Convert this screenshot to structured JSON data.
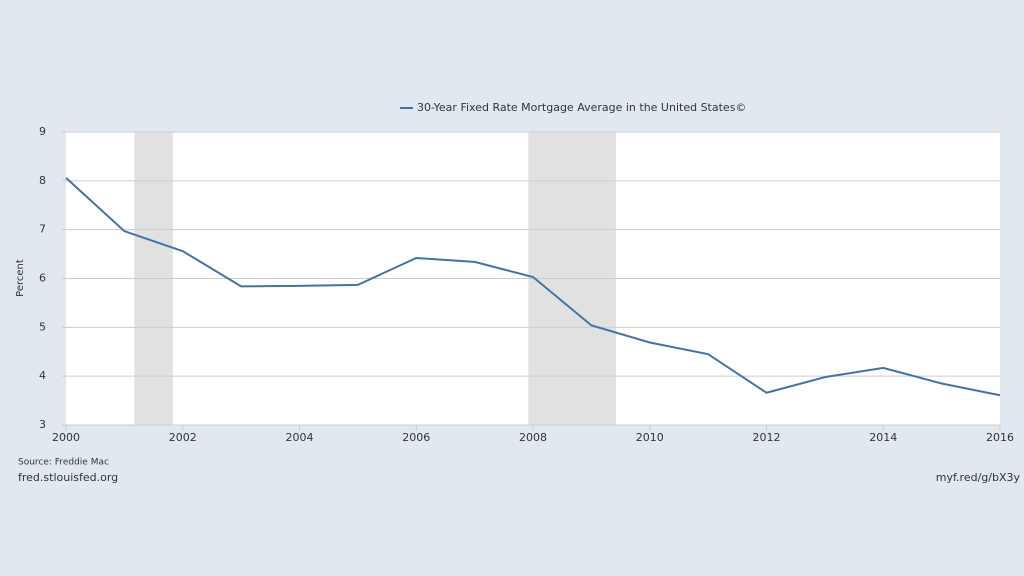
{
  "chart_data": {
    "type": "line",
    "legend_text": "30-Year Fixed Rate Mortgage Average in the United States©",
    "ylabel": "Percent",
    "source": "Source: Freddie Mac",
    "site": "fred.stlouisfed.org",
    "link": "myf.red/g/bX3y",
    "x": [
      2000,
      2001,
      2002,
      2003,
      2004,
      2005,
      2006,
      2007,
      2008,
      2009,
      2010,
      2011,
      2012,
      2013,
      2014,
      2015,
      2016
    ],
    "series": [
      {
        "name": "30-Year Fixed Rate Mortgage Average in the United States©",
        "color": "#4572a7",
        "values": [
          8.06,
          6.97,
          6.56,
          5.84,
          5.85,
          5.87,
          6.42,
          6.34,
          6.03,
          5.04,
          4.69,
          4.45,
          3.66,
          3.98,
          4.17,
          3.85,
          3.61
        ]
      }
    ],
    "recessions": [
      [
        2001.17,
        2001.83
      ],
      [
        2007.92,
        2009.42
      ]
    ],
    "xlim": [
      2000,
      2016
    ],
    "xticks": [
      2000,
      2002,
      2004,
      2006,
      2008,
      2010,
      2012,
      2014,
      2016
    ],
    "ylim": [
      3,
      9
    ],
    "yticks": [
      3,
      4,
      5,
      6,
      7,
      8,
      9
    ],
    "grid": true
  }
}
